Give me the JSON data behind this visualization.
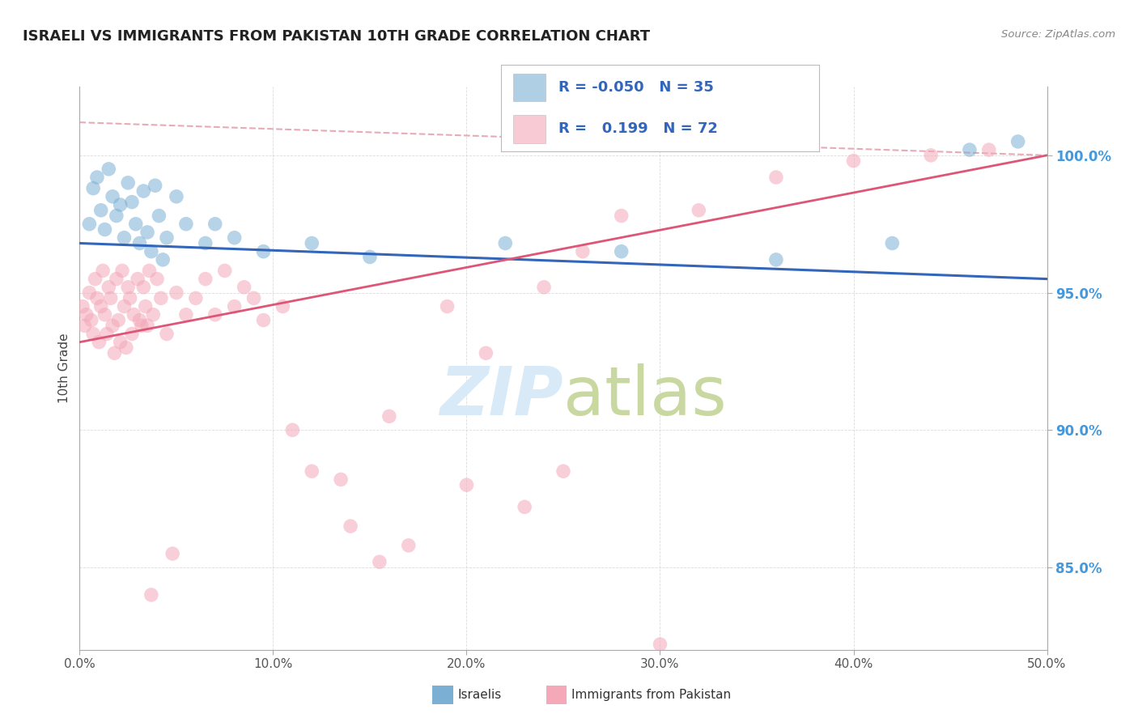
{
  "title": "ISRAELI VS IMMIGRANTS FROM PAKISTAN 10TH GRADE CORRELATION CHART",
  "source_text": "Source: ZipAtlas.com",
  "ylabel": "10th Grade",
  "xlim": [
    0.0,
    50.0
  ],
  "ylim": [
    82.0,
    102.5
  ],
  "legend_R1": "-0.050",
  "legend_N1": "35",
  "legend_R2": "0.199",
  "legend_N2": "72",
  "color_blue": "#7BAFD4",
  "color_pink": "#F4A8B8",
  "color_blue_line": "#3366BB",
  "color_pink_line": "#DD5577",
  "color_diag_line": "#CC9999",
  "background_color": "#FFFFFF",
  "watermark_color": "#D8EAF8",
  "ytick_values": [
    85.0,
    90.0,
    95.0,
    100.0
  ],
  "ytick_labels": [
    "85.0%",
    "90.0%",
    "95.0%",
    "100.0%"
  ],
  "israeli_x": [
    0.5,
    0.7,
    0.9,
    1.1,
    1.3,
    1.5,
    1.7,
    1.9,
    2.1,
    2.3,
    2.5,
    2.7,
    2.9,
    3.1,
    3.3,
    3.5,
    3.7,
    3.9,
    4.1,
    4.3,
    4.5,
    5.0,
    5.5,
    6.5,
    7.0,
    8.0,
    9.5,
    12.0,
    15.0,
    22.0,
    28.0,
    36.0,
    42.0,
    46.0,
    48.5
  ],
  "israeli_y": [
    97.5,
    98.8,
    99.2,
    98.0,
    97.3,
    99.5,
    98.5,
    97.8,
    98.2,
    97.0,
    99.0,
    98.3,
    97.5,
    96.8,
    98.7,
    97.2,
    96.5,
    98.9,
    97.8,
    96.2,
    97.0,
    98.5,
    97.5,
    96.8,
    97.5,
    97.0,
    96.5,
    96.8,
    96.3,
    96.8,
    96.5,
    96.2,
    96.8,
    100.2,
    100.5
  ],
  "pakistan_x": [
    0.15,
    0.25,
    0.35,
    0.5,
    0.6,
    0.7,
    0.8,
    0.9,
    1.0,
    1.1,
    1.2,
    1.3,
    1.4,
    1.5,
    1.6,
    1.7,
    1.8,
    1.9,
    2.0,
    2.1,
    2.2,
    2.3,
    2.4,
    2.5,
    2.6,
    2.7,
    2.8,
    3.0,
    3.1,
    3.2,
    3.3,
    3.4,
    3.5,
    3.6,
    3.8,
    4.0,
    4.2,
    4.5,
    5.0,
    5.5,
    6.0,
    6.5,
    7.0,
    7.5,
    8.0,
    8.5,
    9.5,
    10.5,
    12.0,
    14.0,
    15.5,
    17.0,
    20.0,
    23.0,
    25.0,
    9.0,
    11.0,
    13.5,
    16.0,
    19.0,
    21.0,
    24.0,
    26.0,
    28.0,
    32.0,
    36.0,
    40.0,
    44.0,
    47.0,
    30.0,
    4.8,
    3.7
  ],
  "pakistan_y": [
    94.5,
    93.8,
    94.2,
    95.0,
    94.0,
    93.5,
    95.5,
    94.8,
    93.2,
    94.5,
    95.8,
    94.2,
    93.5,
    95.2,
    94.8,
    93.8,
    92.8,
    95.5,
    94.0,
    93.2,
    95.8,
    94.5,
    93.0,
    95.2,
    94.8,
    93.5,
    94.2,
    95.5,
    94.0,
    93.8,
    95.2,
    94.5,
    93.8,
    95.8,
    94.2,
    95.5,
    94.8,
    93.5,
    95.0,
    94.2,
    94.8,
    95.5,
    94.2,
    95.8,
    94.5,
    95.2,
    94.0,
    94.5,
    88.5,
    86.5,
    85.2,
    85.8,
    88.0,
    87.2,
    88.5,
    94.8,
    90.0,
    88.2,
    90.5,
    94.5,
    92.8,
    95.2,
    96.5,
    97.8,
    98.0,
    99.2,
    99.8,
    100.0,
    100.2,
    82.2,
    85.5,
    84.0
  ]
}
